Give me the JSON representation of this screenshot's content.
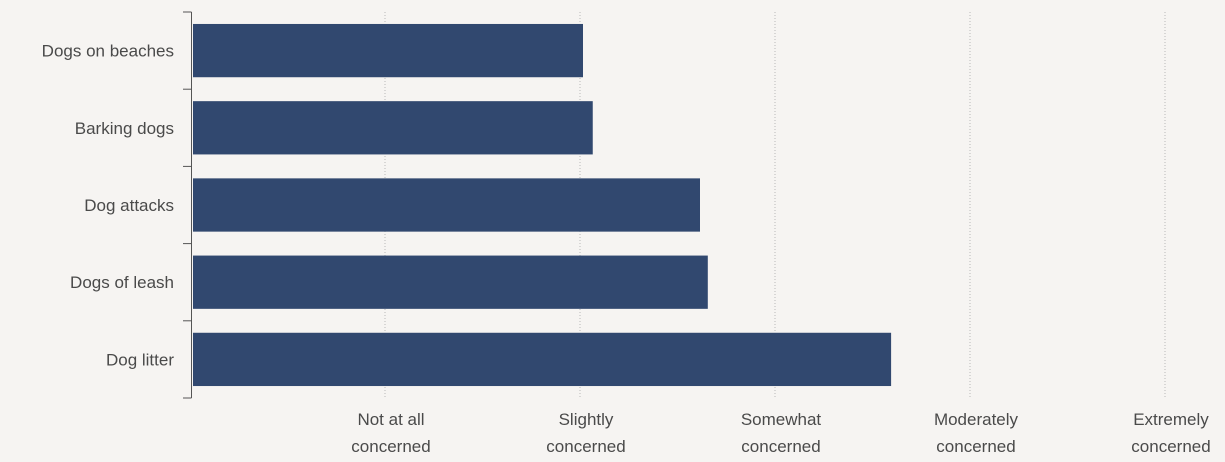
{
  "chart_data": {
    "type": "bar",
    "orientation": "horizontal",
    "categories": [
      "Dogs on beaches",
      "Barking dogs",
      "Dog attacks",
      "Dogs of leash",
      "Dog litter"
    ],
    "values": [
      2.0,
      2.05,
      2.6,
      2.64,
      3.58
    ],
    "xlim": [
      0,
      5
    ],
    "x_ticks": [
      {
        "value": 1,
        "lines": [
          "Not at all",
          "concerned"
        ]
      },
      {
        "value": 2,
        "lines": [
          "Slightly",
          "concerned"
        ]
      },
      {
        "value": 3,
        "lines": [
          "Somewhat",
          "concerned"
        ]
      },
      {
        "value": 4,
        "lines": [
          "Moderately",
          "concerned"
        ]
      },
      {
        "value": 5,
        "lines": [
          "Extremely",
          "concerned"
        ]
      }
    ],
    "grid": "vertical",
    "bar_color": "#31486f"
  }
}
